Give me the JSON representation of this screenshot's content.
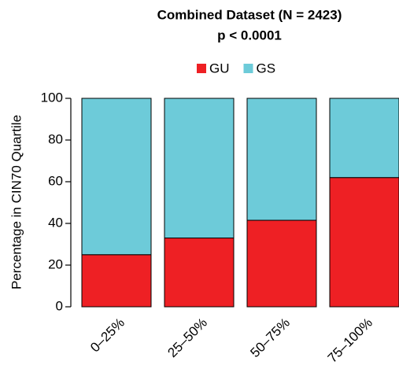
{
  "chart_data": {
    "type": "stacked_bar",
    "title": "Combined Dataset (N = 2423)",
    "subtitle": "p < 0.0001",
    "y_label": "Percentage in CIN70 Quartile",
    "categories": [
      "0–25%",
      "25–50%",
      "50–75%",
      "75–100%"
    ],
    "series": [
      {
        "name": "GU",
        "color": "#ee2024",
        "values": [
          25,
          33,
          41.5,
          62
        ]
      },
      {
        "name": "GS",
        "color": "#6dcbd9",
        "values": [
          75,
          67,
          58.5,
          38
        ]
      }
    ],
    "ylim": [
      0,
      100
    ],
    "yticks": [
      0,
      20,
      40,
      60,
      80,
      100
    ]
  }
}
